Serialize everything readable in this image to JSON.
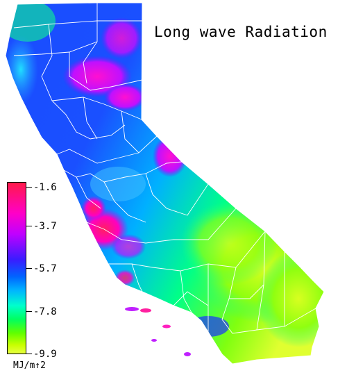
{
  "title": "Long wave Radiation",
  "legend": {
    "ticks": [
      "-1.6",
      "-3.7",
      "-5.7",
      "-7.8",
      "-9.9"
    ],
    "unit": "MJ/m↑2"
  },
  "colors": {
    "high": "#ff1a4a",
    "magenta": "#ff00c8",
    "blue": "#2040ff",
    "cyan": "#00c8ff",
    "green": "#00ff60",
    "low": "#e0ff30",
    "border": "#ffffff"
  }
}
